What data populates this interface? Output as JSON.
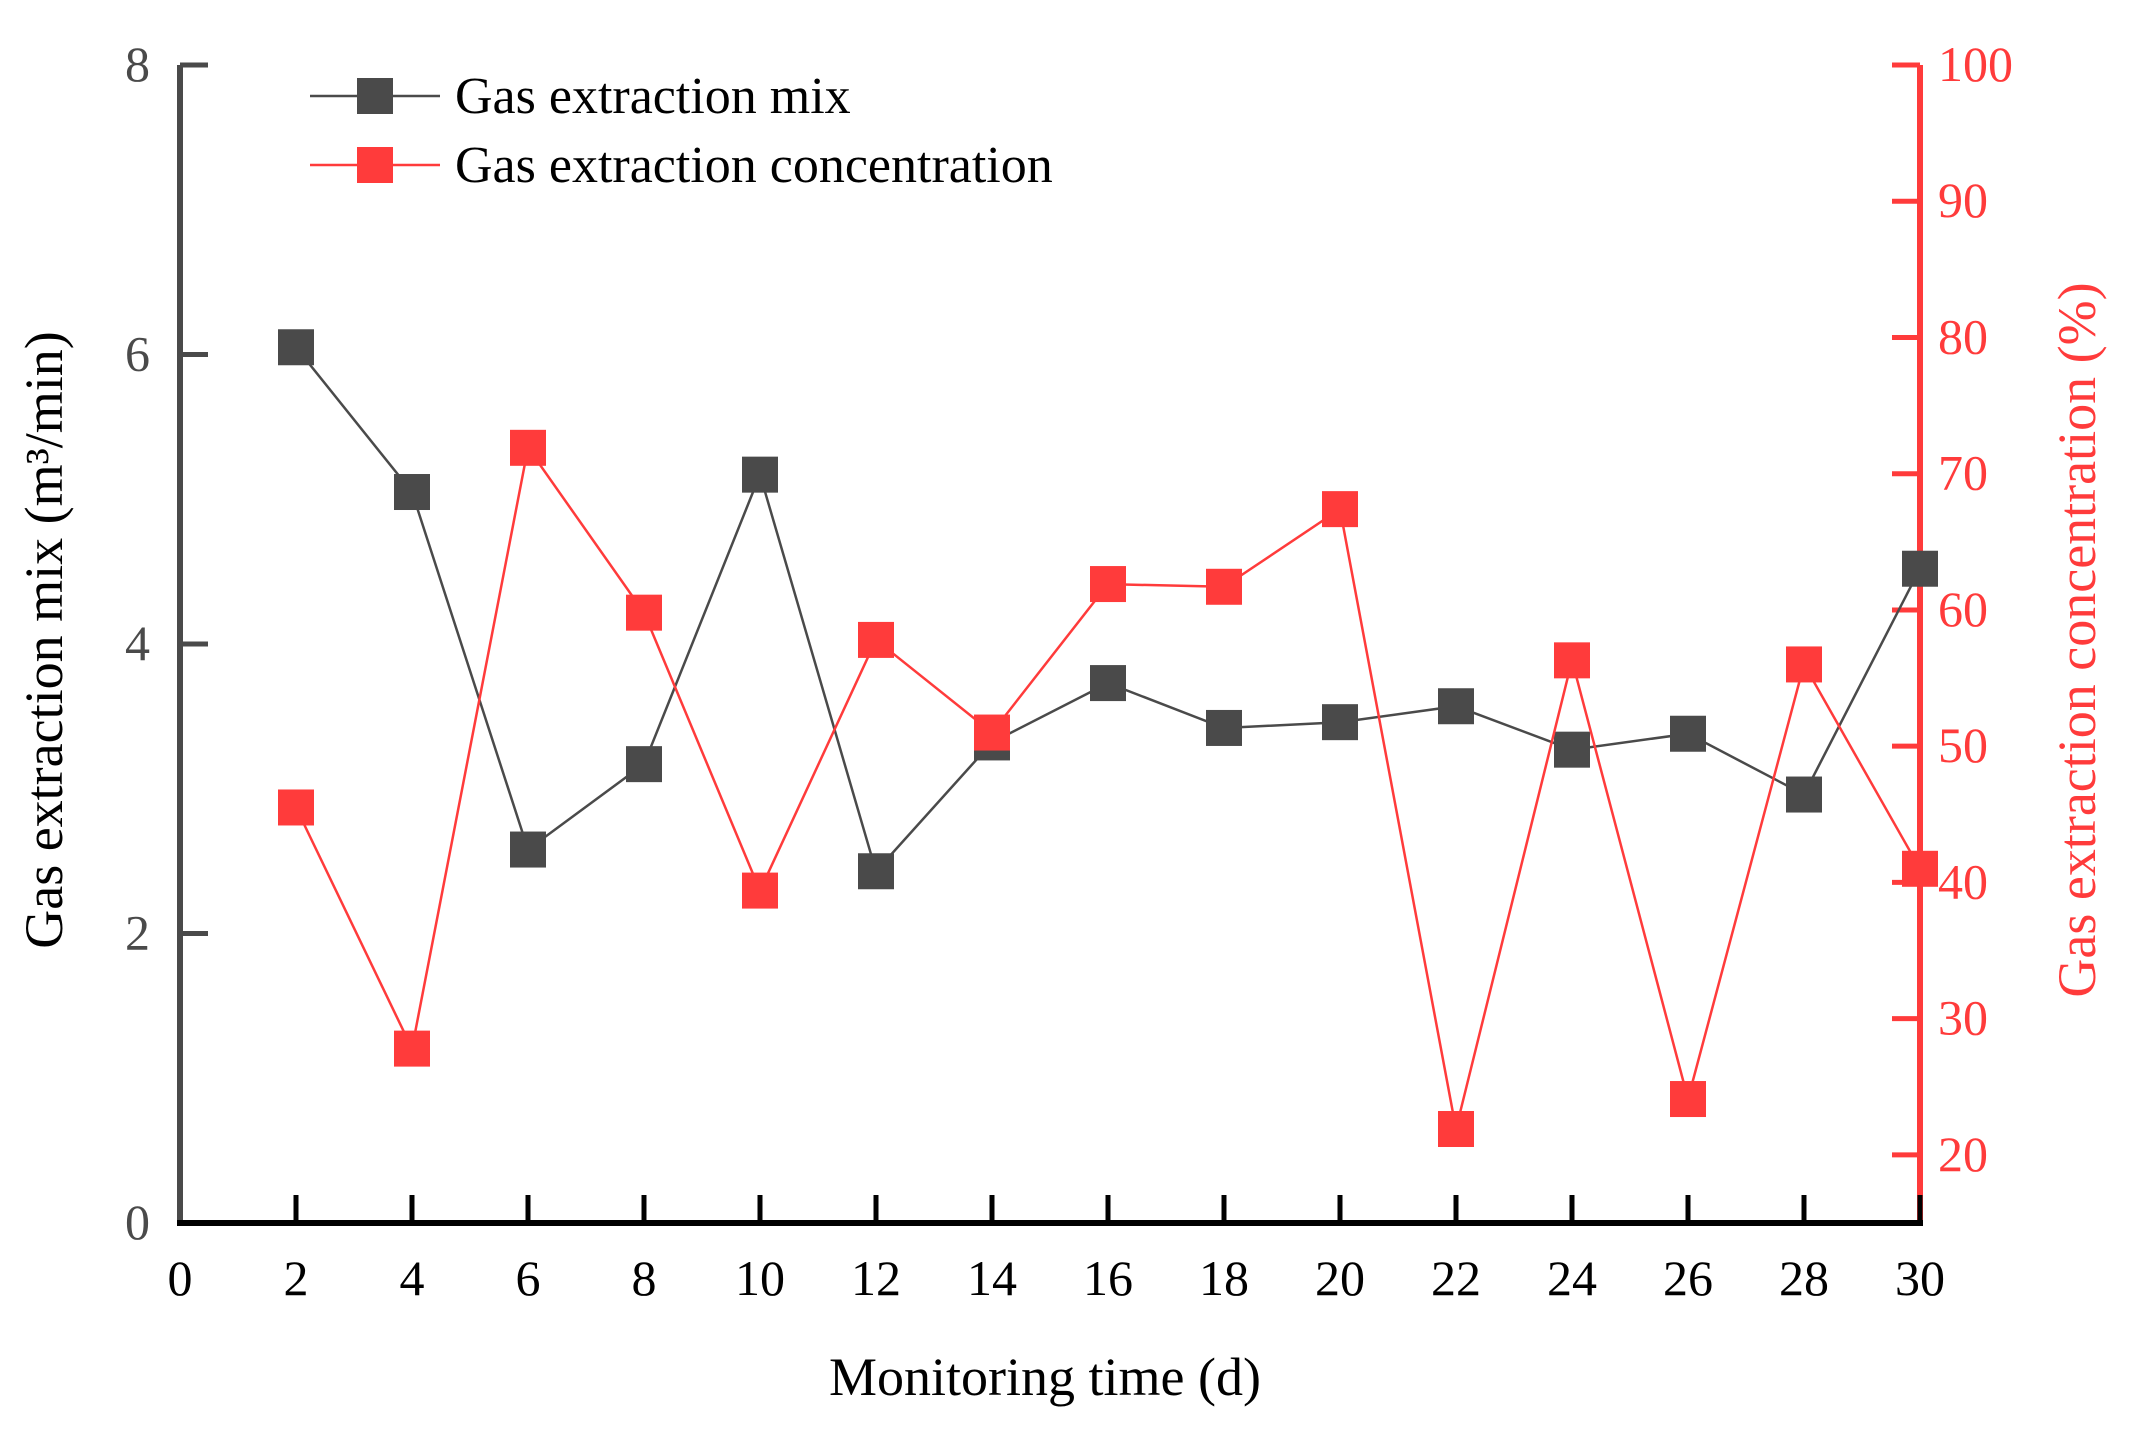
{
  "chart_data": {
    "type": "line",
    "xlabel": "Monitoring time (d)",
    "x": [
      2,
      4,
      6,
      8,
      10,
      12,
      14,
      16,
      18,
      20,
      22,
      24,
      26,
      28,
      30
    ],
    "xlim": [
      0,
      30
    ],
    "xticks": [
      "0",
      "2",
      "4",
      "6",
      "8",
      "10",
      "12",
      "14",
      "16",
      "18",
      "20",
      "22",
      "24",
      "26",
      "28",
      "30"
    ],
    "y_left": {
      "label": "Gas extraction mix (m³/min)",
      "lim": [
        0,
        8
      ],
      "ticks": [
        "0",
        "2",
        "4",
        "6",
        "8"
      ],
      "color": "#4a4a4a"
    },
    "y_right": {
      "label": "Gas extraction concentration (%)",
      "lim": [
        15,
        100
      ],
      "ticks": [
        "20",
        "30",
        "40",
        "50",
        "60",
        "70",
        "80",
        "90",
        "100"
      ],
      "color": "#ff3b3b"
    },
    "series": [
      {
        "name": "Gas extraction mix",
        "axis": "left",
        "color": "#4a4a4a",
        "values": [
          6.05,
          5.05,
          2.58,
          3.17,
          5.17,
          2.43,
          3.32,
          3.73,
          3.42,
          3.46,
          3.57,
          3.27,
          3.38,
          2.96,
          4.52
        ]
      },
      {
        "name": "Gas extraction concentration",
        "axis": "right",
        "color": "#ff3b3b",
        "values": [
          45.5,
          27.8,
          71.9,
          59.8,
          39.4,
          57.8,
          51.0,
          61.9,
          61.7,
          67.4,
          21.9,
          56.3,
          24.1,
          56.0,
          41.0
        ]
      }
    ],
    "legend_position": "top-left"
  }
}
